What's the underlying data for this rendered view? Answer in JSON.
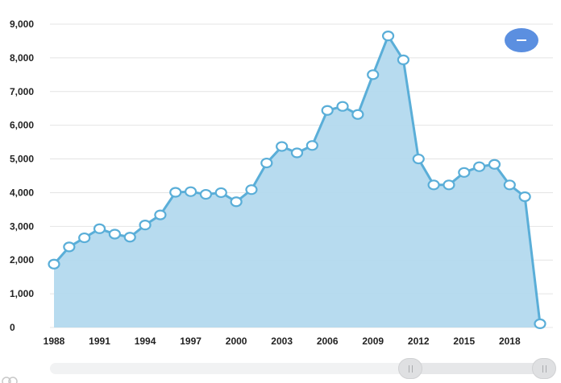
{
  "chart_data": {
    "type": "area",
    "x": [
      1988,
      1989,
      1990,
      1991,
      1992,
      1993,
      1994,
      1995,
      1996,
      1997,
      1998,
      1999,
      2000,
      2001,
      2002,
      2003,
      2004,
      2005,
      2006,
      2007,
      2008,
      2009,
      2010,
      2011,
      2012,
      2013,
      2014,
      2015,
      2016,
      2017,
      2018,
      2019,
      2020
    ],
    "values": [
      1880,
      2390,
      2660,
      2930,
      2770,
      2680,
      3040,
      3340,
      4010,
      4030,
      3950,
      4000,
      3730,
      4090,
      4880,
      5370,
      5180,
      5400,
      6440,
      6560,
      6320,
      7500,
      8650,
      7940,
      5000,
      4230,
      4230,
      4600,
      4770,
      4840,
      4230,
      3880,
      110
    ],
    "x_ticks": [
      "1988",
      "1991",
      "1994",
      "1997",
      "2000",
      "2003",
      "2006",
      "2009",
      "2012",
      "2015",
      "2018"
    ],
    "y_ticks": [
      "0",
      "1,000",
      "2,000",
      "3,000",
      "4,000",
      "5,000",
      "6,000",
      "7,000",
      "8,000",
      "9,000"
    ],
    "ylim": [
      0,
      9000
    ],
    "xlim": [
      1988,
      2020
    ],
    "grid": true,
    "title": "",
    "xlabel": "",
    "ylabel": "",
    "colors": {
      "line": "#5aaed8",
      "fill": "#b3d9ee",
      "marker_fill": "#ffffff"
    }
  },
  "controls": {
    "zoom_button_icon": "minus-icon",
    "zoom_button_color": "#5b8fe0",
    "scrollbar_handle_icon": "grip-icon"
  }
}
